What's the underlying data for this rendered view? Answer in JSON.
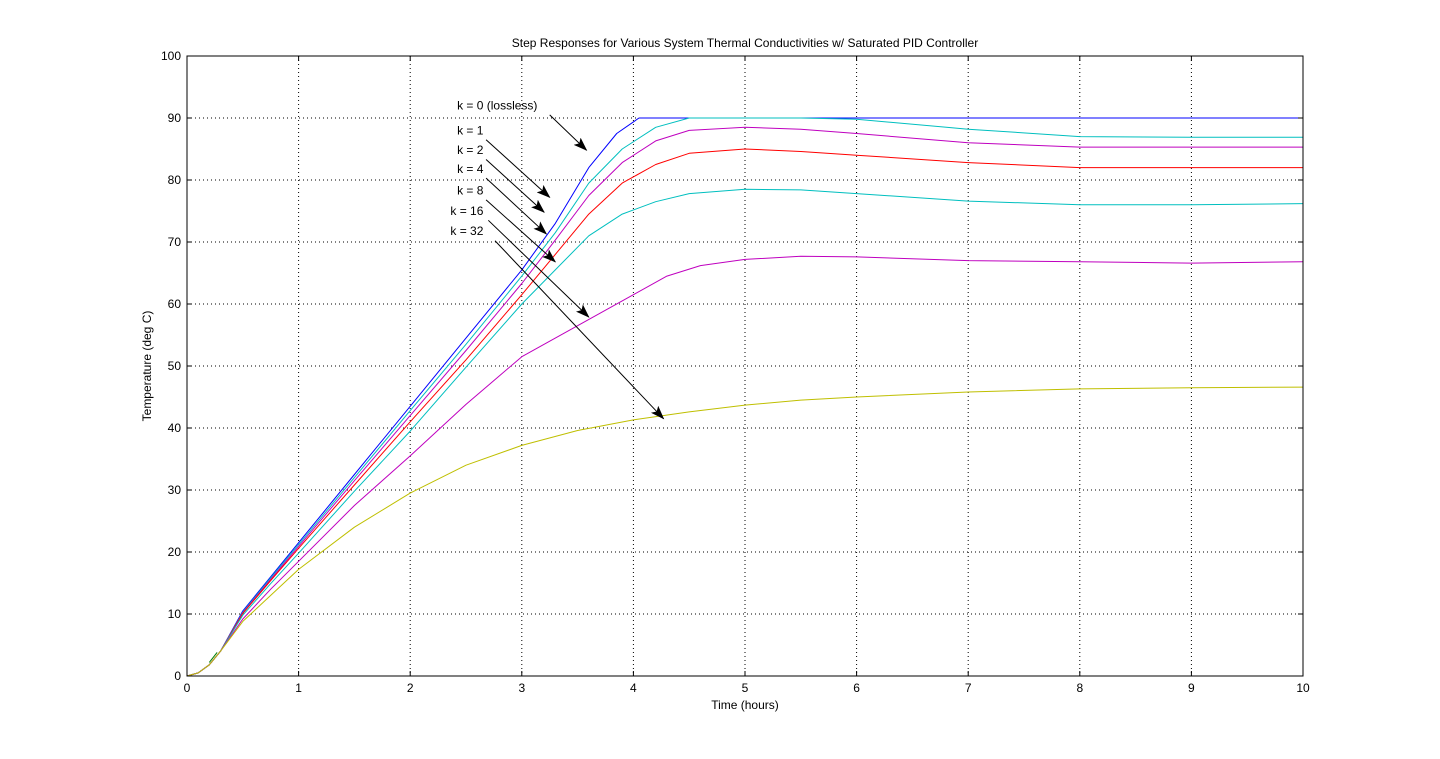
{
  "chart_data": {
    "type": "line",
    "title": "Step Responses for Various System Thermal Conductivities w/ Saturated PID Controller",
    "xlabel": "Time (hours)",
    "ylabel": "Temperature (deg C)",
    "xlim": [
      0,
      10
    ],
    "ylim": [
      0,
      100
    ],
    "xticks": [
      0,
      1,
      2,
      3,
      4,
      5,
      6,
      7,
      8,
      9,
      10
    ],
    "yticks": [
      0,
      10,
      20,
      30,
      40,
      50,
      60,
      70,
      80,
      90,
      100
    ],
    "grid": true,
    "series": [
      {
        "color": "#0000ff",
        "x": [
          0,
          0.1,
          0.2,
          0.3,
          0.5,
          0.75,
          1,
          1.5,
          2,
          2.5,
          3,
          3.3,
          3.6,
          3.85,
          4.05,
          5,
          6,
          7,
          8,
          9,
          10
        ],
        "y": [
          0,
          0.5,
          1.8,
          4.0,
          10.5,
          16.0,
          21.5,
          32.5,
          43.5,
          54.5,
          65.5,
          73.0,
          82.0,
          87.5,
          90.0,
          90.0,
          90.0,
          90.0,
          90.0,
          90.0,
          90.0
        ]
      },
      {
        "color": "#00bfbf",
        "x": [
          0,
          0.1,
          0.2,
          0.3,
          0.5,
          0.75,
          1,
          1.5,
          2,
          2.5,
          3,
          3.3,
          3.6,
          3.9,
          4.2,
          4.5,
          5,
          5.5,
          6,
          7,
          8,
          9,
          10
        ],
        "y": [
          0,
          0.5,
          1.8,
          4.0,
          10.3,
          15.8,
          21.2,
          32.0,
          42.8,
          53.5,
          64.5,
          71.5,
          79.5,
          85.0,
          88.5,
          90.0,
          90.0,
          90.0,
          89.8,
          88.2,
          87.0,
          86.9,
          86.9
        ]
      },
      {
        "color": "#bf00bf",
        "x": [
          0,
          0.1,
          0.2,
          0.3,
          0.5,
          0.75,
          1,
          1.5,
          2,
          2.5,
          3,
          3.3,
          3.6,
          3.9,
          4.2,
          4.5,
          5,
          5.5,
          6,
          7,
          8,
          9,
          10
        ],
        "y": [
          0,
          0.5,
          1.8,
          4.0,
          10.2,
          15.6,
          20.9,
          31.5,
          42.0,
          52.5,
          63.3,
          70.3,
          77.5,
          82.8,
          86.3,
          88.0,
          88.5,
          88.2,
          87.5,
          86.0,
          85.3,
          85.3,
          85.3
        ]
      },
      {
        "color": "#ff0000",
        "x": [
          0,
          0.1,
          0.2,
          0.3,
          0.5,
          0.75,
          1,
          1.5,
          2,
          2.5,
          3,
          3.3,
          3.6,
          3.9,
          4.2,
          4.5,
          5,
          5.5,
          6,
          7,
          8,
          9,
          10
        ],
        "y": [
          0,
          0.5,
          1.8,
          4.0,
          10.1,
          15.4,
          20.6,
          30.8,
          41.0,
          51.0,
          61.5,
          68.0,
          74.5,
          79.5,
          82.5,
          84.3,
          85.0,
          84.6,
          84.0,
          82.8,
          82.0,
          82.0,
          82.0
        ]
      },
      {
        "color": "#00bfbf",
        "x": [
          0,
          0.1,
          0.2,
          0.3,
          0.5,
          0.75,
          1,
          1.5,
          2,
          2.5,
          3,
          3.3,
          3.6,
          3.9,
          4.2,
          4.5,
          5,
          5.5,
          6,
          7,
          8,
          9,
          10
        ],
        "y": [
          0,
          0.5,
          1.8,
          4.0,
          9.8,
          14.9,
          19.8,
          29.8,
          39.5,
          49.8,
          60.0,
          65.5,
          71.0,
          74.5,
          76.5,
          77.8,
          78.5,
          78.4,
          77.8,
          76.6,
          76.0,
          76.0,
          76.2
        ]
      },
      {
        "color": "#bf00bf",
        "x": [
          0,
          0.1,
          0.2,
          0.3,
          0.5,
          0.75,
          1,
          1.5,
          2,
          2.5,
          3,
          3.5,
          4,
          4.3,
          4.6,
          5,
          5.5,
          6,
          7,
          8,
          9,
          10
        ],
        "y": [
          0,
          0.5,
          1.8,
          4.0,
          9.2,
          14.0,
          18.5,
          27.5,
          35.5,
          43.8,
          51.5,
          56.5,
          61.5,
          64.5,
          66.2,
          67.2,
          67.7,
          67.6,
          67.0,
          66.8,
          66.6,
          66.8
        ]
      },
      {
        "color": "#bfbf00",
        "x": [
          0,
          0.1,
          0.2,
          0.3,
          0.5,
          0.75,
          1,
          1.5,
          2,
          2.5,
          3,
          3.5,
          4,
          4.5,
          5,
          5.5,
          6,
          7,
          8,
          9,
          10
        ],
        "y": [
          0,
          0.5,
          1.8,
          4.0,
          8.8,
          13.0,
          17.2,
          24.0,
          29.5,
          34.0,
          37.2,
          39.6,
          41.3,
          42.6,
          43.7,
          44.5,
          45.0,
          45.8,
          46.3,
          46.5,
          46.6
        ]
      },
      {
        "color": "#008000",
        "x": [
          0.2,
          0.27
        ],
        "y": [
          2.2,
          3.8
        ]
      }
    ],
    "annotations": [
      {
        "text": "k = 0 (lossless)",
        "label_at": [
          2.42,
          92.0
        ],
        "arrow_from": [
          3.25,
          90.5
        ],
        "arrow_to": [
          3.58,
          84.8
        ]
      },
      {
        "text": "k = 1",
        "label_at": [
          2.42,
          88.0
        ],
        "arrow_from": [
          2.68,
          86.5
        ],
        "arrow_to": [
          3.25,
          77.2
        ]
      },
      {
        "text": "k = 2",
        "label_at": [
          2.42,
          84.8
        ],
        "arrow_from": [
          2.68,
          83.3
        ],
        "arrow_to": [
          3.2,
          74.8
        ]
      },
      {
        "text": "k = 4",
        "label_at": [
          2.42,
          81.8
        ],
        "arrow_from": [
          2.68,
          80.3
        ],
        "arrow_to": [
          3.22,
          71.3
        ]
      },
      {
        "text": "k = 8",
        "label_at": [
          2.42,
          78.3
        ],
        "arrow_from": [
          2.68,
          76.8
        ],
        "arrow_to": [
          3.3,
          66.8
        ]
      },
      {
        "text": "k = 16",
        "label_at": [
          2.36,
          75.0
        ],
        "arrow_from": [
          2.7,
          73.5
        ],
        "arrow_to": [
          3.6,
          57.9
        ]
      },
      {
        "text": "k = 32",
        "label_at": [
          2.36,
          71.8
        ],
        "arrow_from": [
          2.76,
          70.2
        ],
        "arrow_to": [
          4.27,
          41.5
        ]
      }
    ]
  }
}
